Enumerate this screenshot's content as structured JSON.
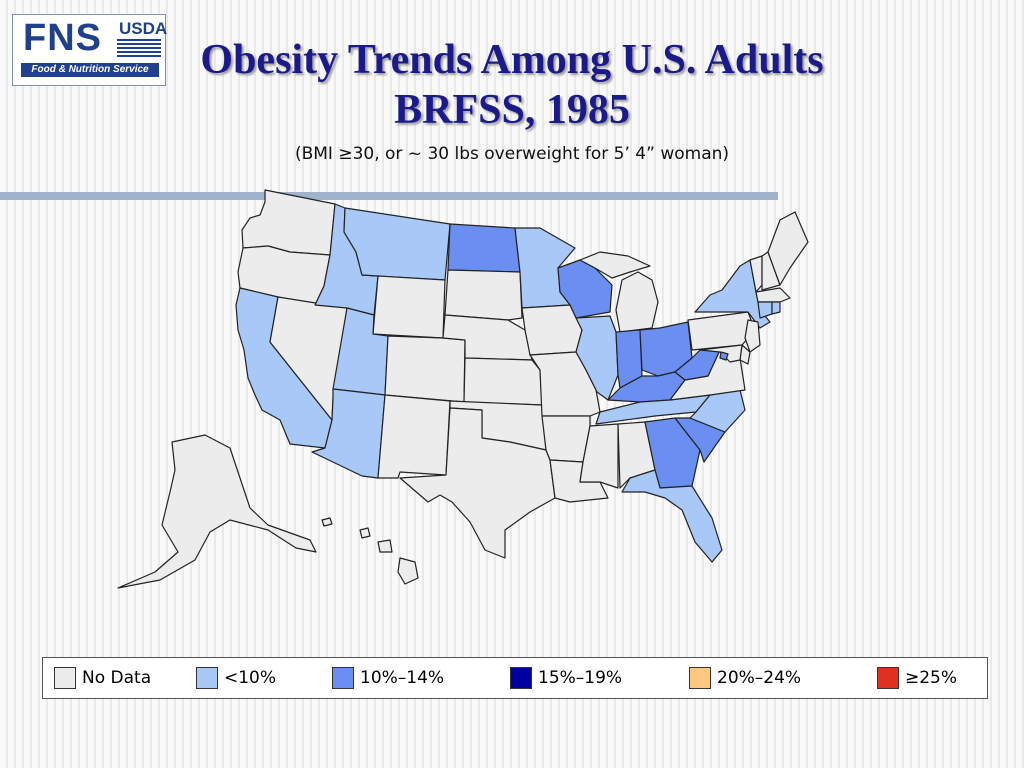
{
  "logo": {
    "brand": "FNS",
    "agency": "USDA",
    "tagline": "Food & Nutrition Service"
  },
  "title_line1": "Obesity Trends Among U.S. Adults",
  "title_line2": "BRFSS, 1985",
  "subtitle": "(BMI ≥30, or ~ 30 lbs overweight for 5’ 4” woman)",
  "colors": {
    "no_data": "#ececec",
    "under_10": "#a8c8f8",
    "10_14": "#6b8ff0",
    "15_19": "#0000a0",
    "20_24": "#ffc880",
    "25_plus": "#e03020",
    "border": "#222222"
  },
  "legend": [
    {
      "label": "No Data",
      "color": "#ececec"
    },
    {
      "label": "<10%",
      "color": "#a8c8f8"
    },
    {
      "label": "10%–14%",
      "color": "#6b8ff0"
    },
    {
      "label": "15%–19%",
      "color": "#0000a0"
    },
    {
      "label": "20%–24%",
      "color": "#ffc880"
    },
    {
      "label": "≥25%",
      "color": "#e03020"
    }
  ],
  "states": {
    "WA": "no_data",
    "OR": "no_data",
    "CA": "under_10",
    "NV": "no_data",
    "ID": "under_10",
    "MT": "under_10",
    "WY": "no_data",
    "UT": "under_10",
    "AZ": "under_10",
    "CO": "no_data",
    "NM": "no_data",
    "ND": "10_14",
    "SD": "no_data",
    "NE": "no_data",
    "KS": "no_data",
    "OK": "no_data",
    "TX": "no_data",
    "MN": "under_10",
    "IA": "no_data",
    "MO": "no_data",
    "AR": "no_data",
    "LA": "no_data",
    "WI": "10_14",
    "IL": "under_10",
    "MI": "no_data",
    "IN": "10_14",
    "OH": "10_14",
    "KY": "10_14",
    "TN": "under_10",
    "MS": "no_data",
    "AL": "no_data",
    "GA": "10_14",
    "FL": "under_10",
    "SC": "10_14",
    "NC": "under_10",
    "VA": "no_data",
    "WV": "10_14",
    "PA": "no_data",
    "NY": "under_10",
    "VT": "no_data",
    "NH": "no_data",
    "ME": "no_data",
    "MA": "no_data",
    "RI": "under_10",
    "CT": "under_10",
    "NJ": "no_data",
    "DE": "no_data",
    "MD": "no_data",
    "DC": "10_14",
    "AK": "no_data",
    "HI": "no_data"
  }
}
